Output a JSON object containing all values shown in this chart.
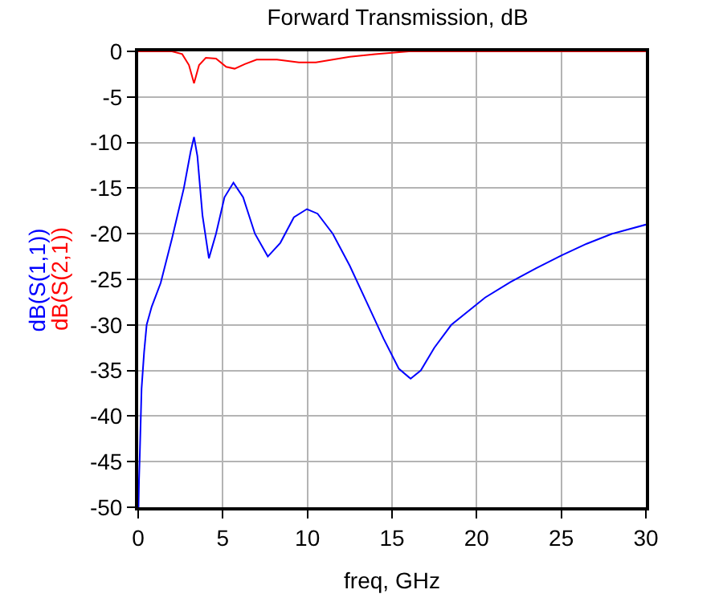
{
  "chart_data": {
    "type": "line",
    "title": "Forward Transmission, dB",
    "xlabel": "freq, GHz",
    "xlim": [
      0,
      30
    ],
    "xticks": [
      0,
      5,
      10,
      15,
      20,
      25,
      30
    ],
    "ylim": [
      -50,
      0
    ],
    "yticks": [
      -50,
      -45,
      -40,
      -35,
      -30,
      -25,
      -20,
      -15,
      -10,
      -5,
      0
    ],
    "grid": true,
    "series": [
      {
        "name": "dB(S(1,1))",
        "color": "#0000ff",
        "x": [
          0.02,
          0.05,
          0.1,
          0.2,
          0.35,
          0.5,
          0.8,
          1.33,
          2,
          2.7,
          3.1,
          3.3,
          3.5,
          3.8,
          4.18,
          4.6,
          5.1,
          5.63,
          6.2,
          6.9,
          7.66,
          8.4,
          9.2,
          9.97,
          10.6,
          11.5,
          12.5,
          13.5,
          14.5,
          15.4,
          16.1,
          16.7,
          17.5,
          18.5,
          19.5,
          20.5,
          22,
          23.5,
          25,
          26.5,
          28,
          30
        ],
        "values": [
          -50,
          -47,
          -44,
          -37,
          -33,
          -30,
          -28,
          -25.4,
          -20.5,
          -15,
          -11,
          -9.4,
          -11.5,
          -18,
          -22.7,
          -20,
          -16,
          -14.4,
          -16,
          -20,
          -22.5,
          -21,
          -18.2,
          -17.3,
          -17.8,
          -20,
          -23.5,
          -27.5,
          -31.5,
          -34.8,
          -35.9,
          -35,
          -32.5,
          -30,
          -28.5,
          -27,
          -25.3,
          -23.8,
          -22.4,
          -21.1,
          -20,
          -19
        ]
      },
      {
        "name": "dB(S(2,1))",
        "color": "#ff0000",
        "x": [
          0,
          2,
          2.6,
          3.0,
          3.3,
          3.6,
          4.0,
          4.6,
          5.2,
          5.7,
          6.3,
          7,
          8.2,
          9.5,
          10.5,
          11.5,
          12.5,
          14,
          16,
          30
        ],
        "values": [
          0,
          0,
          -0.3,
          -1.5,
          -3.5,
          -1.5,
          -0.7,
          -0.8,
          -1.7,
          -1.9,
          -1.4,
          -0.9,
          -0.9,
          -1.2,
          -1.2,
          -0.9,
          -0.6,
          -0.3,
          0,
          0
        ]
      }
    ]
  }
}
